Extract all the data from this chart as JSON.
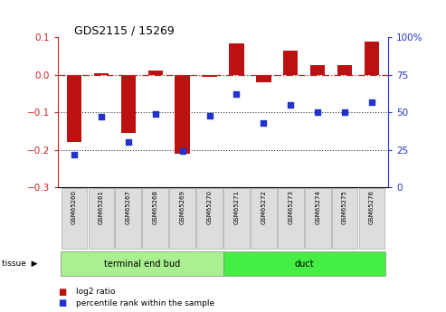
{
  "title": "GDS2115 / 15269",
  "samples": [
    "GSM65260",
    "GSM65261",
    "GSM65267",
    "GSM65268",
    "GSM65269",
    "GSM65270",
    "GSM65271",
    "GSM65272",
    "GSM65273",
    "GSM65274",
    "GSM65275",
    "GSM65276"
  ],
  "log2_ratio": [
    -0.18,
    0.005,
    -0.155,
    0.012,
    -0.21,
    -0.005,
    0.085,
    -0.02,
    0.065,
    0.025,
    0.025,
    0.088
  ],
  "percentile": [
    22,
    47,
    30,
    49,
    24,
    48,
    62,
    43,
    55,
    50,
    50,
    57
  ],
  "ylim_left": [
    -0.3,
    0.1
  ],
  "ylim_right": [
    0,
    100
  ],
  "yticks_left": [
    0.1,
    0.0,
    -0.1,
    -0.2,
    -0.3
  ],
  "yticks_right": [
    100,
    75,
    50,
    25,
    0
  ],
  "bar_color": "#bb1111",
  "dot_color": "#2233cc",
  "tissue_groups": [
    {
      "label": "terminal end bud",
      "start": 0,
      "end": 6,
      "color": "#aaf090"
    },
    {
      "label": "duct",
      "start": 6,
      "end": 12,
      "color": "#44ee44"
    }
  ],
  "legend_bar_label": "log2 ratio",
  "legend_dot_label": "percentile rank within the sample",
  "background_color": "#ffffff",
  "zero_line_color": "#cc2222",
  "hline_color": "#333333"
}
